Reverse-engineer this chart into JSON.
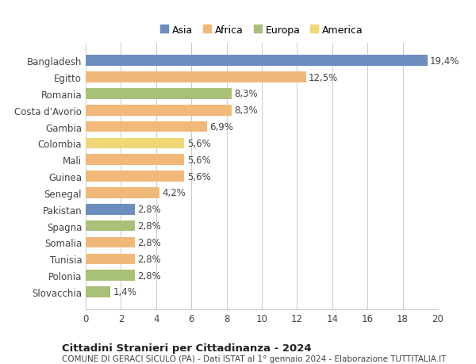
{
  "categories": [
    "Bangladesh",
    "Egitto",
    "Romania",
    "Costa d'Avorio",
    "Gambia",
    "Colombia",
    "Mali",
    "Guinea",
    "Senegal",
    "Pakistan",
    "Spagna",
    "Somalia",
    "Tunisia",
    "Polonia",
    "Slovacchia"
  ],
  "values": [
    19.4,
    12.5,
    8.3,
    8.3,
    6.9,
    5.6,
    5.6,
    5.6,
    4.2,
    2.8,
    2.8,
    2.8,
    2.8,
    2.8,
    1.4
  ],
  "labels": [
    "19,4%",
    "12,5%",
    "8,3%",
    "8,3%",
    "6,9%",
    "5,6%",
    "5,6%",
    "5,6%",
    "4,2%",
    "2,8%",
    "2,8%",
    "2,8%",
    "2,8%",
    "2,8%",
    "1,4%"
  ],
  "colors": [
    "#6c8ebf",
    "#f0b97a",
    "#a8c078",
    "#f0b97a",
    "#f0b97a",
    "#f0d878",
    "#f0b97a",
    "#f0b97a",
    "#f0b97a",
    "#6c8ebf",
    "#a8c078",
    "#f0b97a",
    "#f0b97a",
    "#a8c078",
    "#a8c078"
  ],
  "legend_labels": [
    "Asia",
    "Africa",
    "Europa",
    "America"
  ],
  "legend_colors": [
    "#6c8ebf",
    "#f0b97a",
    "#a8c078",
    "#f0d878"
  ],
  "xlim": [
    0,
    20
  ],
  "xticks": [
    0,
    2,
    4,
    6,
    8,
    10,
    12,
    14,
    16,
    18,
    20
  ],
  "title": "Cittadini Stranieri per Cittadinanza - 2024",
  "subtitle": "COMUNE DI GERACI SICULO (PA) - Dati ISTAT al 1° gennaio 2024 - Elaborazione TUTTITALIA.IT",
  "background_color": "#ffffff",
  "bar_height": 0.65,
  "label_fontsize": 8.5,
  "tick_fontsize": 8.5
}
